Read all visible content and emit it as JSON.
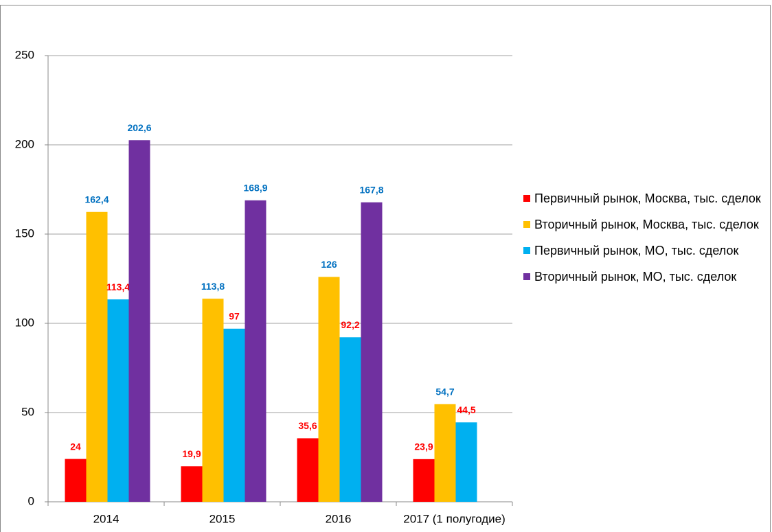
{
  "chart_data": {
    "type": "bar",
    "categories": [
      "2014",
      "2015",
      "2016",
      "2017 (1 полугодие)"
    ],
    "series": [
      {
        "name": "Первичный рынок, Москва, тыс. сделок",
        "color": "#ff0000",
        "label_color": "#ff0000",
        "values": [
          24,
          19.9,
          35.6,
          23.9
        ],
        "value_labels": [
          "24",
          "19,9",
          "35,6",
          "23,9"
        ]
      },
      {
        "name": "Вторичный рынок, Москва, тыс. сделок",
        "color": "#ffc000",
        "label_color": "#0070c0",
        "values": [
          162.4,
          113.8,
          126,
          54.7
        ],
        "value_labels": [
          "162,4",
          "113,8",
          "126",
          "54,7"
        ]
      },
      {
        "name": "Первичный рынок, МО, тыс. сделок",
        "color": "#00b0f0",
        "label_color": "#ff0000",
        "values": [
          113.4,
          97,
          92.2,
          44.5
        ],
        "value_labels": [
          "113,4",
          "97",
          "92,2",
          "44,5"
        ]
      },
      {
        "name": "Вторичный рынок, МО, тыс. сделок",
        "color": "#7030a0",
        "label_color": "#0070c0",
        "values": [
          202.6,
          168.9,
          167.8,
          null
        ],
        "value_labels": [
          "202,6",
          "168,9",
          "167,8",
          null
        ]
      }
    ],
    "ylim": [
      0,
      250
    ],
    "yticks": [
      0,
      50,
      100,
      150,
      200,
      250
    ],
    "grid": true,
    "legend": "right"
  }
}
